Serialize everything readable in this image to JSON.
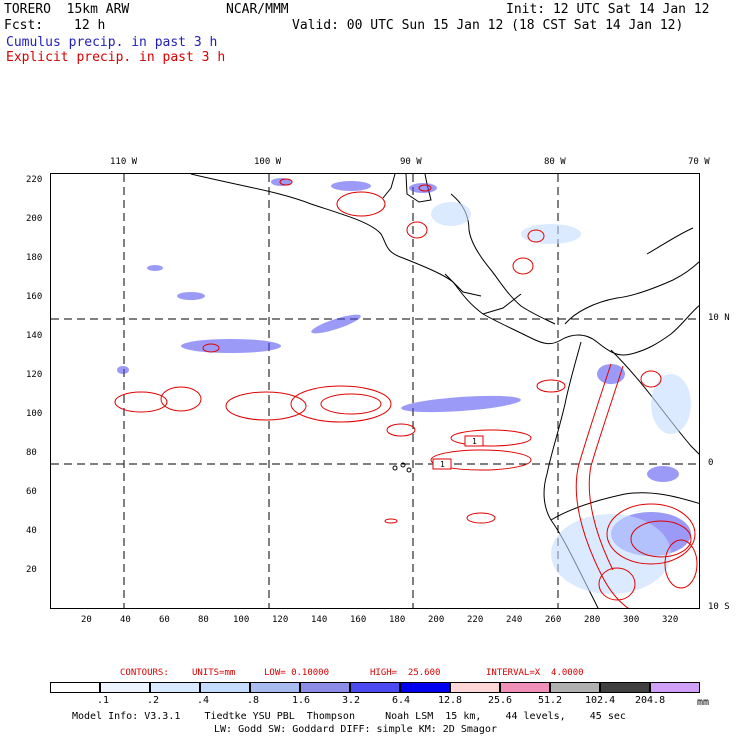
{
  "header": {
    "model": "TORERO  15km ARW",
    "org": "NCAR/MMM",
    "init": "Init: 12 UTC Sat 14 Jan 12",
    "fcst_label": "Fcst:",
    "fcst_value": "12 h",
    "valid": "Valid: 00 UTC Sun 15 Jan 12 (18 CST Sat 14 Jan 12)",
    "line1": "Cumulus precip. in past 3 h",
    "line2": "Explicit precip. in past 3 h"
  },
  "colors": {
    "cumulus": "#1f1fb8",
    "explicit": "#d80000"
  },
  "map": {
    "top_lon_labels": [
      "110 W",
      "100 W",
      "90 W",
      "80 W",
      "70 W"
    ],
    "right_lat_labels": [
      "10 N",
      "0",
      "10 S"
    ],
    "left_y_ticks": [
      "220",
      "200",
      "180",
      "160",
      "140",
      "120",
      "100",
      "80",
      "60",
      "40",
      "20"
    ],
    "bottom_x_ticks": [
      "20",
      "40",
      "60",
      "80",
      "100",
      "120",
      "140",
      "160",
      "180",
      "200",
      "220",
      "240",
      "260",
      "280",
      "300",
      "320"
    ],
    "box_labels": [
      "1",
      "1"
    ]
  },
  "contours_line": {
    "label": "CONTOURS:",
    "units": "UNITS=mm",
    "low": "LOW= 0.10000",
    "high": "HIGH=  25.600",
    "interval": "INTERVAL=X  4.0000"
  },
  "colorbar": {
    "labels": [
      ".1",
      ".2",
      ".4",
      ".8",
      "1.6",
      "3.2",
      "6.4",
      "12.8",
      "25.6",
      "51.2",
      "102.4",
      "204.8"
    ],
    "unit": "mm",
    "colors": [
      "#ffffff",
      "#eef4ff",
      "#d9e9ff",
      "#c4dcff",
      "#a8bcf0",
      "#8c8ce6",
      "#4a4af0",
      "#0000ee",
      "#ffd6d6",
      "#f090b8",
      "#b0b0b0",
      "#404040",
      "#d0a0f8"
    ]
  },
  "footer": {
    "line1": "Model Info: V3.3.1    Tiedtke YSU PBL  Thompson     Noah LSM  15 km,    44 levels,    45 sec",
    "line2": "LW: Godd SW: Goddard DIFF: simple KM: 2D Smagor"
  }
}
